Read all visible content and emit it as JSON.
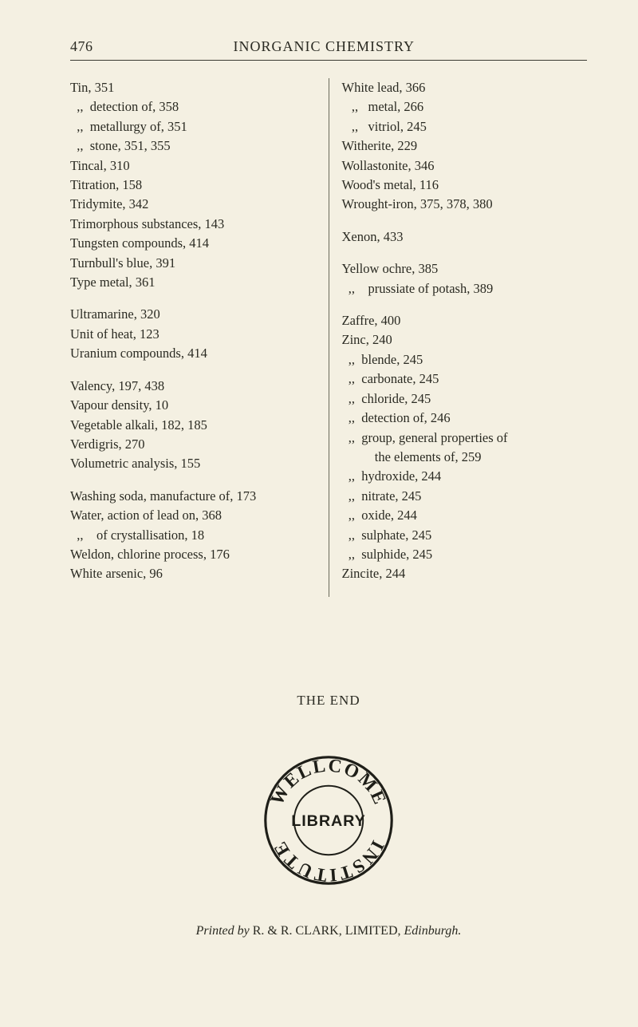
{
  "page_number": "476",
  "running_title": "INORGANIC CHEMISTRY",
  "colors": {
    "background": "#f4f0e2",
    "text": "#2a2a22",
    "rule": "#3a3a32",
    "col_divider": "#6a6a5a",
    "seal_stroke": "#1e1e18"
  },
  "left_column": [
    [
      "Tin, 351",
      "  ,,  detection of, 358",
      "  ,,  metallurgy of, 351",
      "  ,,  stone, 351, 355",
      "Tincal, 310",
      "Titration, 158",
      "Tridymite, 342",
      "Trimorphous substances, 143",
      "Tungsten compounds, 414",
      "Turnbull's blue, 391",
      "Type metal, 361"
    ],
    [
      "Ultramarine, 320",
      "Unit of heat, 123",
      "Uranium compounds, 414"
    ],
    [
      "Valency, 197, 438",
      "Vapour density, 10",
      "Vegetable alkali, 182, 185",
      "Verdigris, 270",
      "Volumetric analysis, 155"
    ],
    [
      "Washing soda, manufacture of, 173",
      "Water, action of lead on, 368",
      "  ,,    of crystallisation, 18",
      "Weldon, chlorine process, 176",
      "White arsenic, 96"
    ]
  ],
  "right_column": [
    [
      "White lead, 366",
      "   ,,   metal, 266",
      "   ,,   vitriol, 245",
      "Witherite, 229",
      "Wollastonite, 346",
      "Wood's metal, 116",
      "Wrought-iron, 375, 378, 380"
    ],
    [
      "Xenon, 433"
    ],
    [
      "Yellow ochre, 385",
      "  ,,    prussiate of potash, 389"
    ],
    [
      "Zaffre, 400",
      "Zinc, 240",
      "  ,,  blende, 245",
      "  ,,  carbonate, 245",
      "  ,,  chloride, 245",
      "  ,,  detection of, 246",
      "  ,,  group, general properties of",
      "          the elements of, 259",
      "  ,,  hydroxide, 244",
      "  ,,  nitrate, 245",
      "  ,,  oxide, 244",
      "  ,,  sulphate, 245",
      "  ,,  sulphide, 245",
      "Zincite, 244"
    ]
  ],
  "the_end": "THE END",
  "seal": {
    "top_arc": "WELLCOME",
    "bottom_arc": "INSTITUTE",
    "center": "LIBRARY"
  },
  "imprint": {
    "prefix": "Printed by ",
    "publisher": "R. & R. CLARK, LIMITED, ",
    "place": "Edinburgh."
  }
}
